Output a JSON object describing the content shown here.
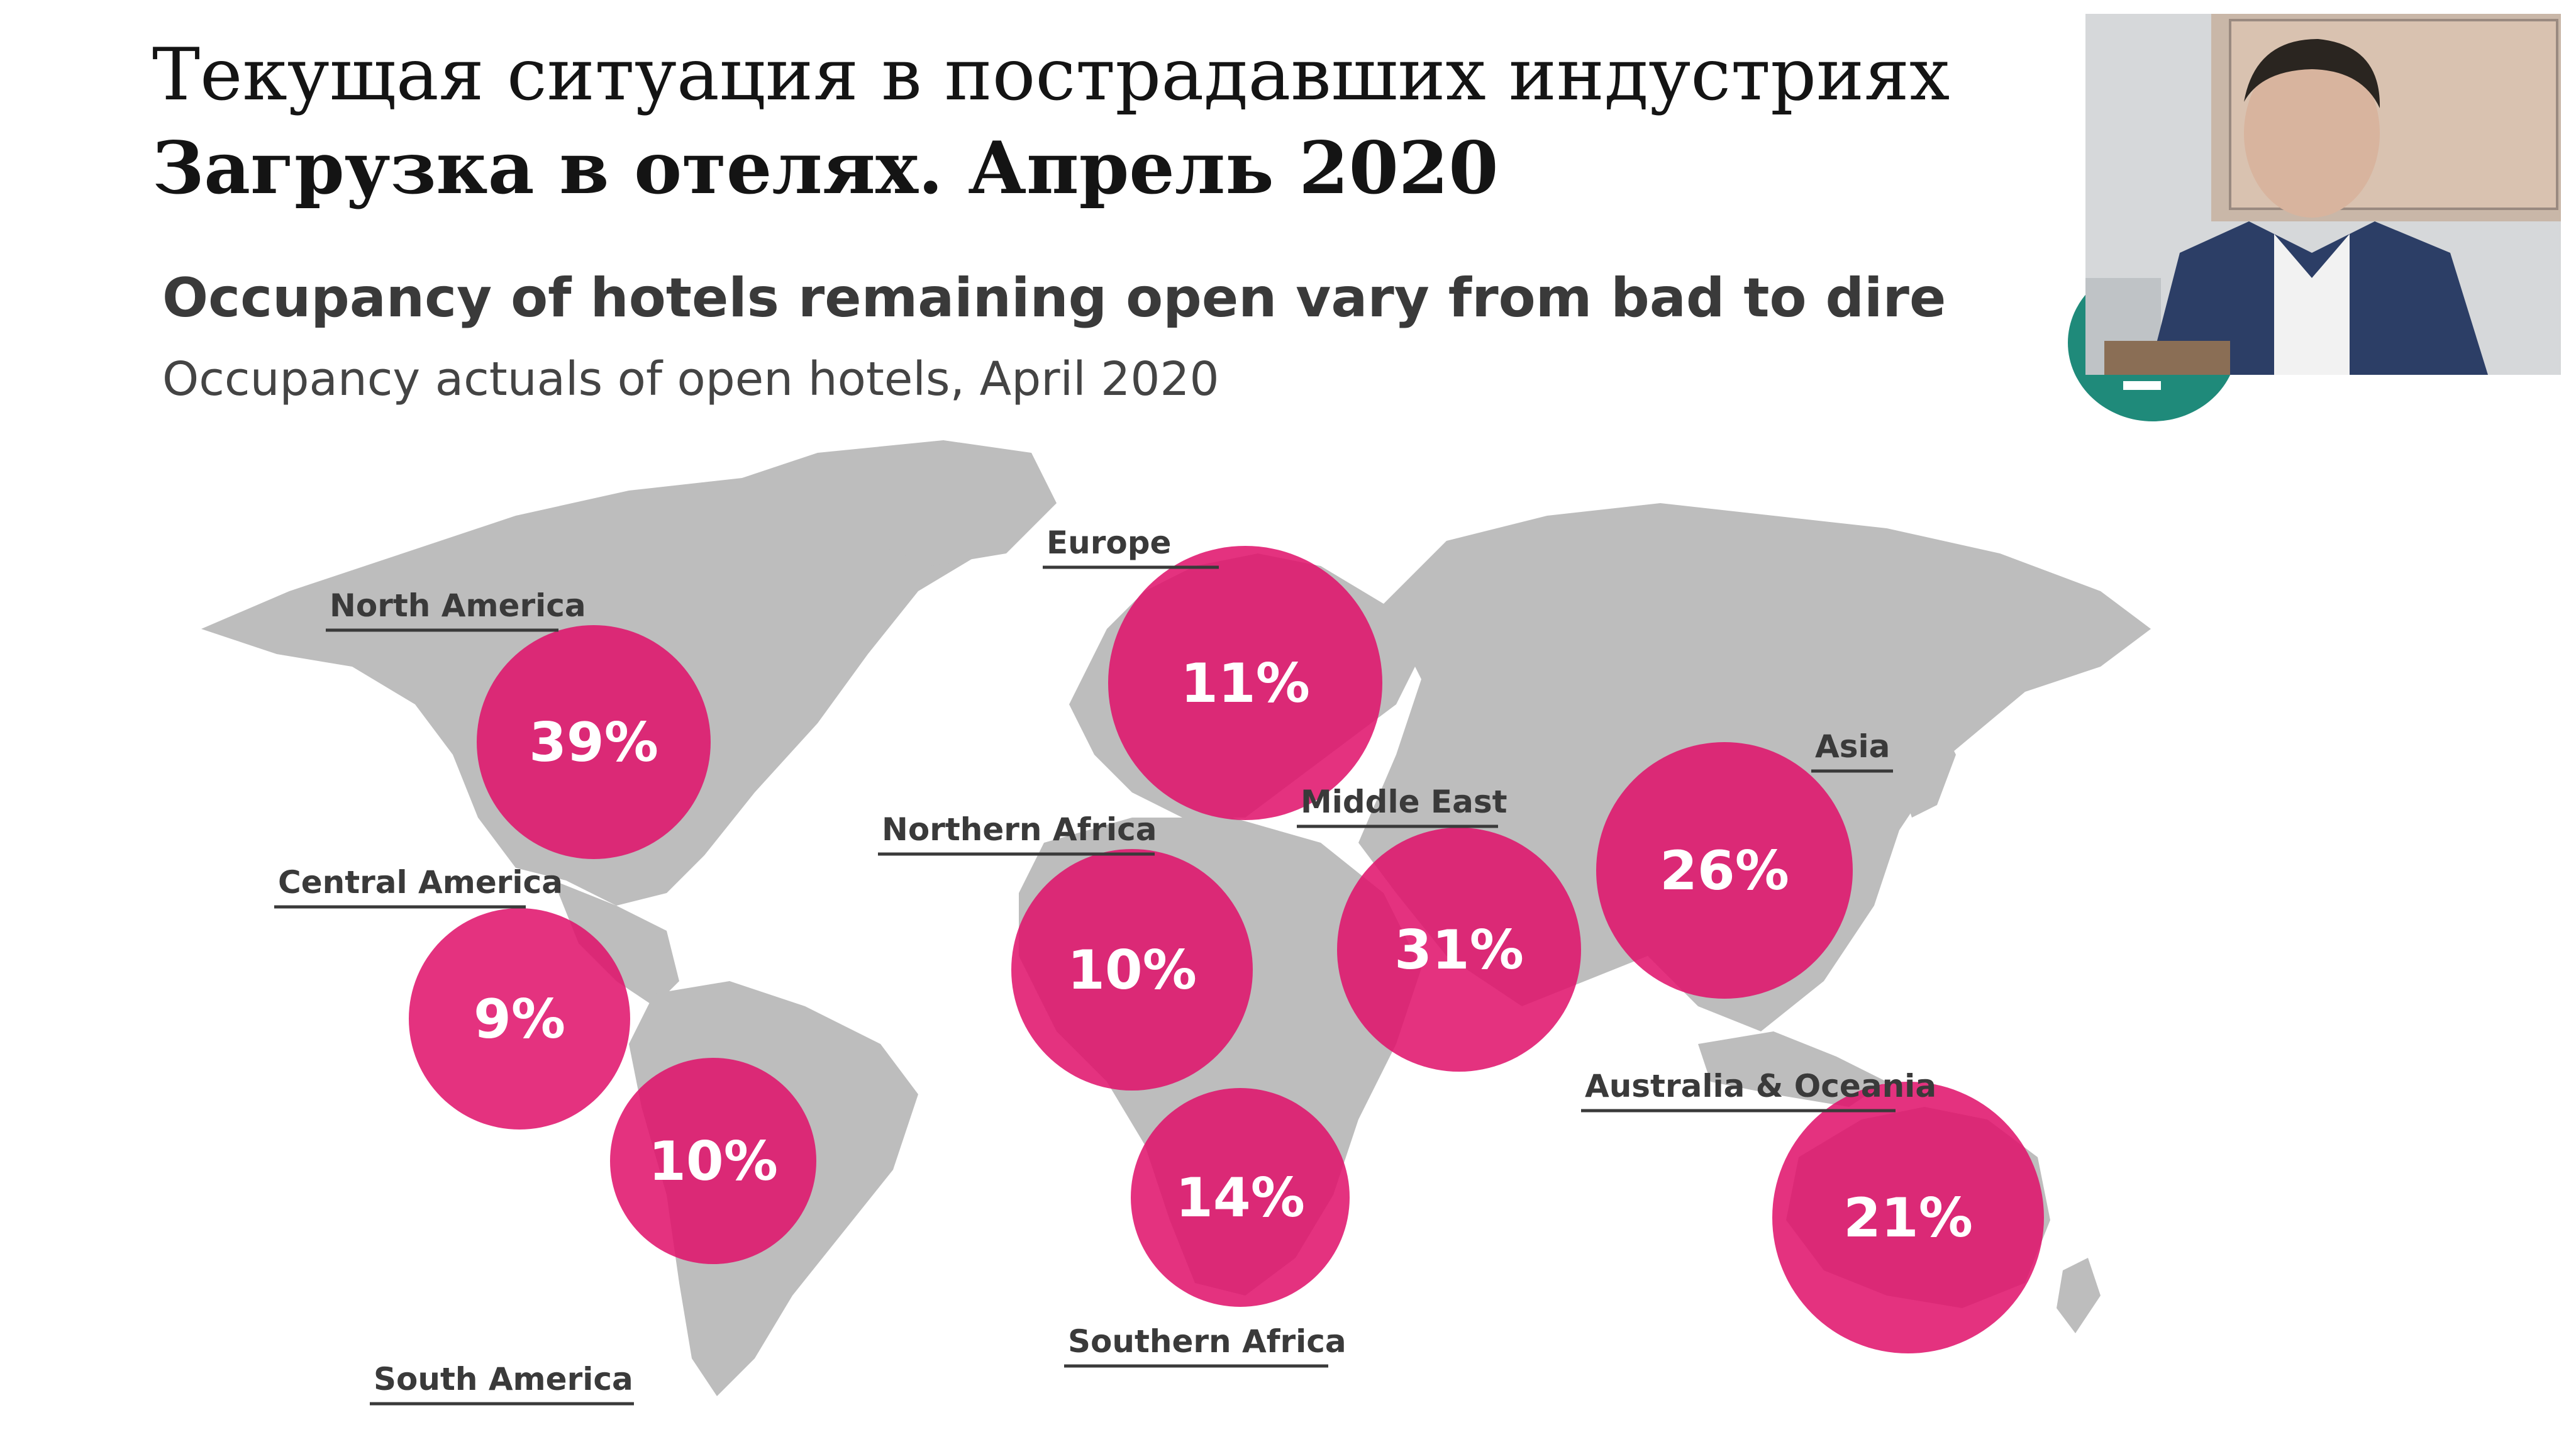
{
  "slide": {
    "title_line1": "Текущая ситуация в пострадавших индустриях",
    "title_line2": "Загрузка в отелях. Апрель 2020"
  },
  "chart": {
    "title": "Occupancy of hotels remaining open vary from bad to dire",
    "subtitle": "Occupancy actuals of open hotels, April 2020"
  },
  "colors": {
    "bubble": "#e0106a",
    "map": "#bdbdbd",
    "label": "#3a3a3a"
  },
  "chart_data": {
    "type": "table",
    "title": "Occupancy of hotels remaining open vary from bad to dire",
    "subtitle": "Occupancy actuals of open hotels, April 2020",
    "regions": [
      {
        "name": "North America",
        "value": "39%"
      },
      {
        "name": "Central America",
        "value": "9%"
      },
      {
        "name": "South America",
        "value": "10%"
      },
      {
        "name": "Europe",
        "value": "11%"
      },
      {
        "name": "Northern Africa",
        "value": "10%"
      },
      {
        "name": "Southern Africa",
        "value": "14%"
      },
      {
        "name": "Middle East",
        "value": "31%"
      },
      {
        "name": "Asia",
        "value": "26%"
      },
      {
        "name": "Australia & Oceania",
        "value": "21%"
      }
    ]
  }
}
